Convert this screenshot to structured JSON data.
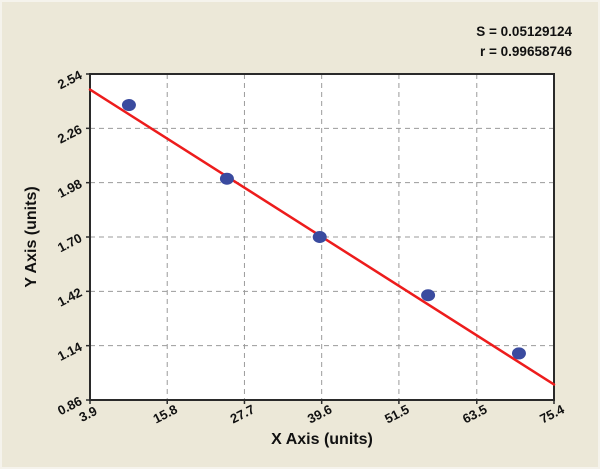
{
  "chart_data": {
    "type": "scatter",
    "title": "",
    "xlabel": "X Axis (units)",
    "ylabel": "Y Axis (units)",
    "x_tick_labels": [
      "3.9",
      "15.8",
      "27.7",
      "39.6",
      "51.5",
      "63.5",
      "75.4"
    ],
    "y_tick_labels": [
      "0.86",
      "1.14",
      "1.42",
      "1.70",
      "1.98",
      "2.26",
      "2.54"
    ],
    "xlim": [
      3.9,
      75.4
    ],
    "ylim": [
      0.86,
      2.54
    ],
    "grid": "dashed",
    "legend": "none",
    "annotations": [
      "S = 0.05129124",
      "r = 0.99658746"
    ],
    "points": {
      "x": [
        9.9,
        25.0,
        39.3,
        56.0,
        70.0
      ],
      "y": [
        2.38,
        2.0,
        1.7,
        1.4,
        1.1
      ]
    },
    "fit_line": {
      "x": [
        3.9,
        75.4
      ],
      "y": [
        2.46,
        0.94
      ]
    },
    "colors": {
      "background": "#ece8d8",
      "plot_background": "#ffffff",
      "point": "#3a4b9f",
      "line": "#ed1c1c",
      "grid": "#9b9b9b",
      "axis": "#2a2a2a",
      "text": "#111111"
    }
  }
}
